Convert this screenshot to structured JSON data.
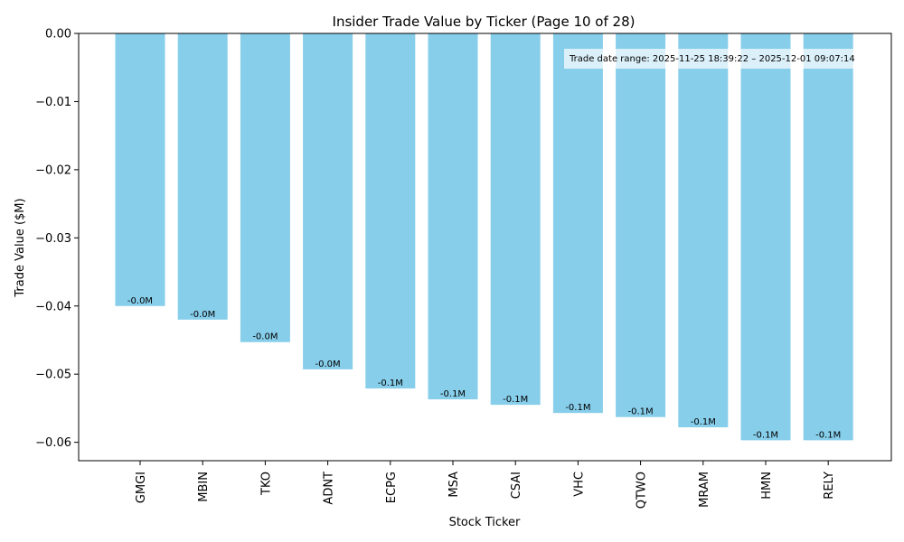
{
  "chart_data": {
    "type": "bar",
    "title": "Insider Trade Value by Ticker (Page 10 of 28)",
    "xlabel": "Stock Ticker",
    "ylabel": "Trade Value ($M)",
    "categories": [
      "GMGI",
      "MBIN",
      "TKO",
      "ADNT",
      "ECPG",
      "MSA",
      "CSAI",
      "VHC",
      "QTWO",
      "MRAM",
      "HMN",
      "RELY"
    ],
    "values": [
      -0.04,
      -0.042,
      -0.0453,
      -0.0493,
      -0.0521,
      -0.0537,
      -0.0545,
      -0.0557,
      -0.0563,
      -0.0578,
      -0.0597,
      -0.0597
    ],
    "data_labels": [
      "-0.0M",
      "-0.0M",
      "-0.0M",
      "-0.0M",
      "-0.1M",
      "-0.1M",
      "-0.1M",
      "-0.1M",
      "-0.1M",
      "-0.1M",
      "-0.1M",
      "-0.1M"
    ],
    "yticks": [
      0.0,
      -0.01,
      -0.02,
      -0.03,
      -0.04,
      -0.05,
      -0.06
    ],
    "ytick_labels": [
      "0.00",
      "−0.01",
      "−0.02",
      "−0.03",
      "−0.04",
      "−0.05",
      "−0.06"
    ],
    "ylim": [
      -0.0627,
      0.0
    ],
    "grid": false,
    "bar_color": "#87CEEB",
    "annotation": "Trade date range: 2025-11-25 18:39:22 – 2025-12-01 09:07:14"
  }
}
